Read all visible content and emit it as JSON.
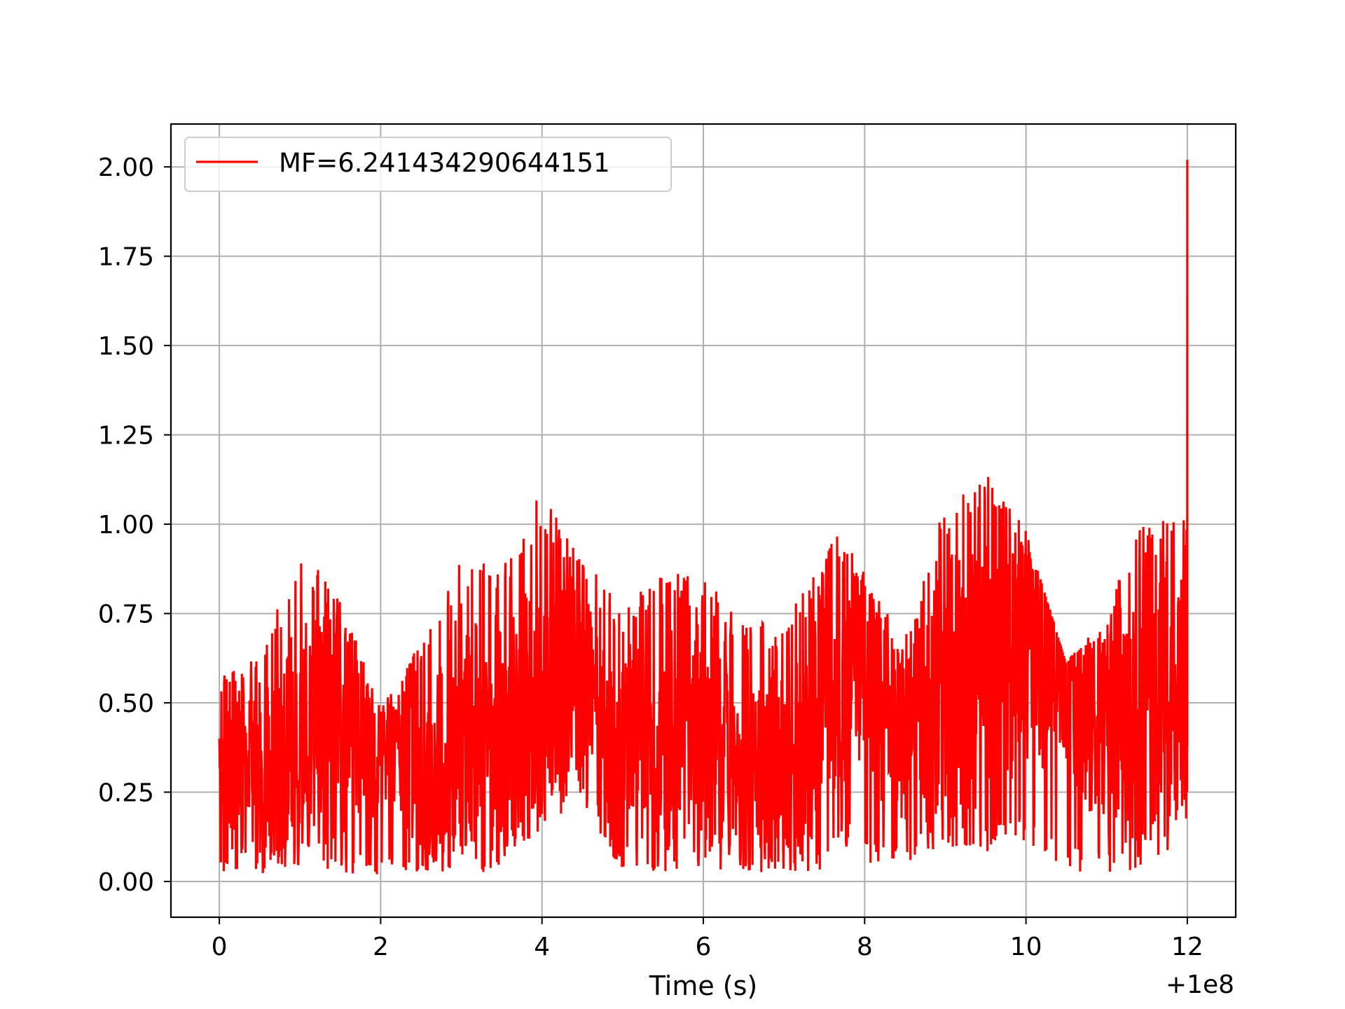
{
  "chart_data": {
    "type": "line",
    "title": "",
    "xlabel": "Time (s)",
    "ylabel": "",
    "x_offset_label": "+1e8",
    "xlim": [
      -0.6,
      12.6
    ],
    "ylim": [
      -0.1,
      2.12
    ],
    "x_ticks": [
      0,
      2,
      4,
      6,
      8,
      10,
      12
    ],
    "x_tick_labels": [
      "0",
      "2",
      "4",
      "6",
      "8",
      "10",
      "12"
    ],
    "y_ticks": [
      0.0,
      0.25,
      0.5,
      0.75,
      1.0,
      1.25,
      1.5,
      1.75,
      2.0
    ],
    "y_tick_labels": [
      "0.00",
      "0.25",
      "0.50",
      "0.75",
      "1.00",
      "1.25",
      "1.50",
      "1.75",
      "2.00"
    ],
    "grid": true,
    "legend_position": "upper-left",
    "series": [
      {
        "name": "MF=6.241434290644151",
        "color": "#ff0000",
        "x_range": [
          0,
          12
        ],
        "envelope": [
          {
            "x": 0.0,
            "min": 0.02,
            "max": 0.62
          },
          {
            "x": 0.5,
            "min": 0.02,
            "max": 0.62
          },
          {
            "x": 0.95,
            "min": 0.05,
            "max": 0.93
          },
          {
            "x": 1.4,
            "min": 0.03,
            "max": 0.86
          },
          {
            "x": 2.0,
            "min": 0.01,
            "max": 0.48
          },
          {
            "x": 2.5,
            "min": 0.02,
            "max": 0.68
          },
          {
            "x": 3.0,
            "min": 0.03,
            "max": 0.91
          },
          {
            "x": 3.5,
            "min": 0.02,
            "max": 0.92
          },
          {
            "x": 4.0,
            "min": 0.15,
            "max": 1.1
          },
          {
            "x": 4.5,
            "min": 0.2,
            "max": 0.92
          },
          {
            "x": 5.0,
            "min": 0.03,
            "max": 0.76
          },
          {
            "x": 5.5,
            "min": 0.03,
            "max": 0.88
          },
          {
            "x": 6.0,
            "min": 0.01,
            "max": 0.86
          },
          {
            "x": 6.5,
            "min": 0.03,
            "max": 0.73
          },
          {
            "x": 7.0,
            "min": 0.02,
            "max": 0.72
          },
          {
            "x": 7.5,
            "min": 0.03,
            "max": 0.92
          },
          {
            "x": 7.6,
            "min": 0.1,
            "max": 1.04
          },
          {
            "x": 8.0,
            "min": 0.05,
            "max": 0.87
          },
          {
            "x": 8.5,
            "min": 0.04,
            "max": 0.69
          },
          {
            "x": 9.0,
            "min": 0.1,
            "max": 1.07
          },
          {
            "x": 9.55,
            "min": 0.08,
            "max": 1.14
          },
          {
            "x": 10.0,
            "min": 0.1,
            "max": 0.98
          },
          {
            "x": 10.5,
            "min": 0.02,
            "max": 0.61
          },
          {
            "x": 11.0,
            "min": 0.02,
            "max": 0.76
          },
          {
            "x": 11.5,
            "min": 0.03,
            "max": 1.04
          },
          {
            "x": 11.95,
            "min": 0.12,
            "max": 1.0
          },
          {
            "x": 12.0,
            "min": 0.2,
            "max": 2.02
          }
        ],
        "peak": {
          "x": 12.0,
          "y": 2.02
        },
        "last_value": 0.38
      }
    ]
  }
}
